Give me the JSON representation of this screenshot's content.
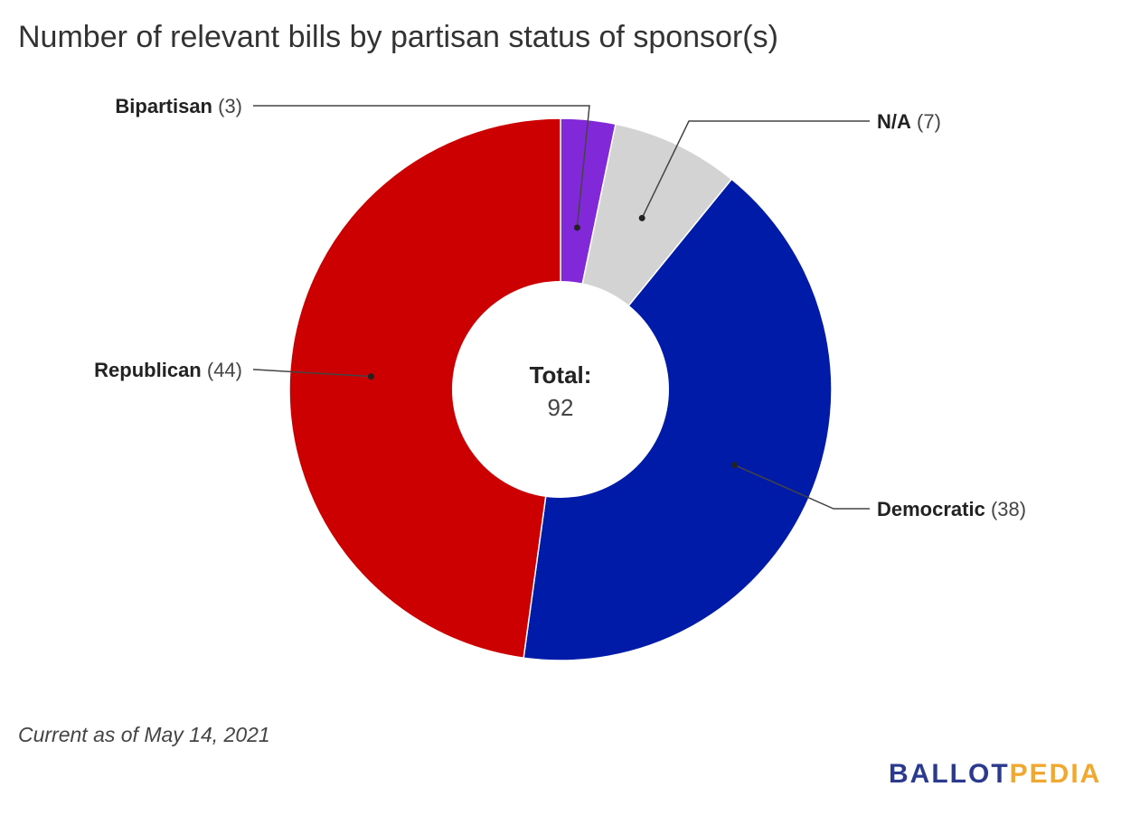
{
  "header": {
    "title": "Number of relevant bills by partisan status of sponsor(s)"
  },
  "chart_data": {
    "type": "pie",
    "donut": true,
    "title": "Number of relevant bills by partisan status of sponsor(s)",
    "center_label": "Total:",
    "total": 92,
    "series": [
      {
        "name": "Bipartisan",
        "value": 3,
        "count_label": "(3)",
        "color": "#8129d9"
      },
      {
        "name": "N/A",
        "value": 7,
        "count_label": "(7)",
        "color": "#d3d3d3"
      },
      {
        "name": "Democratic",
        "value": 38,
        "count_label": "(38)",
        "color": "#001ba8"
      },
      {
        "name": "Republican",
        "value": 44,
        "count_label": "(44)",
        "color": "#cc0000"
      }
    ]
  },
  "footer": {
    "note": "Current as of May 14, 2021",
    "logo_part1": "BALLOT",
    "logo_part2": "PEDIA"
  },
  "colors": {
    "logo_primary": "#2b3a8f",
    "logo_accent": "#f0a830"
  }
}
